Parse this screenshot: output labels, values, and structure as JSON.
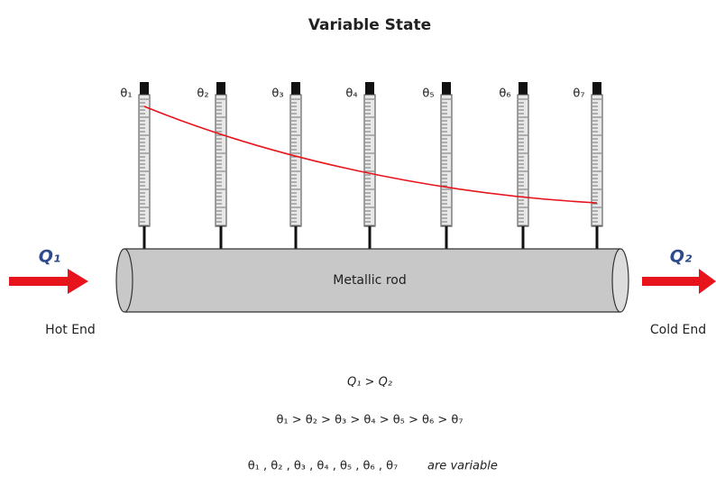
{
  "title": "Variable State",
  "thermometers": [
    {
      "label": "θ₁"
    },
    {
      "label": "θ₂"
    },
    {
      "label": "θ₃"
    },
    {
      "label": "θ₄"
    },
    {
      "label": "θ₅"
    },
    {
      "label": "θ₆"
    },
    {
      "label": "θ₇"
    }
  ],
  "rod": {
    "label": "Metallic rod"
  },
  "heat_in": {
    "label": "Q₁",
    "end": "Hot End"
  },
  "heat_out": {
    "label": "Q₂",
    "end": "Cold End"
  },
  "relations": {
    "heat": "Q₁ > Q₂",
    "temperatures": "θ₁ > θ₂ > θ₃ > θ₄ > θ₅ > θ₆ > θ₇",
    "variables": "θ₁ , θ₂ , θ₃ , θ₄ , θ₅ , θ₆ , θ₇",
    "variables_note": "are variable"
  }
}
